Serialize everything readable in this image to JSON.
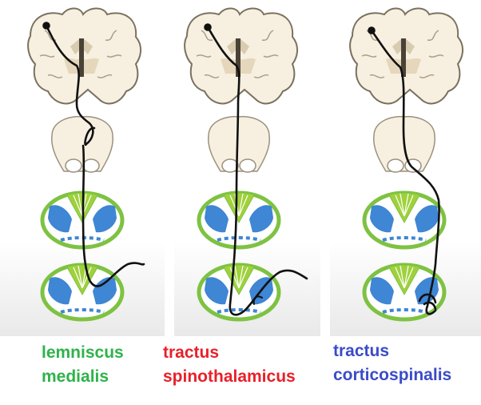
{
  "panels": [
    {
      "label_line1": "lemniscus",
      "label_line2": "medialis",
      "label_color": "#2eb34a"
    },
    {
      "label_line1": "tractus",
      "label_line2": "spinothalamicus",
      "label_color": "#e8202a"
    },
    {
      "label_line1": "tractus",
      "label_line2": "corticospinalis",
      "label_color": "#3b4bc8"
    }
  ],
  "colors": {
    "brain_fill": "#f7efdf",
    "brain_outline": "#7a7160",
    "brain_inner": "#d8cbb0",
    "cord_gray": "#9fd13c",
    "cord_outline": "#7ec242",
    "cord_blue": "#3f86d4",
    "tract_line": "#111111"
  }
}
